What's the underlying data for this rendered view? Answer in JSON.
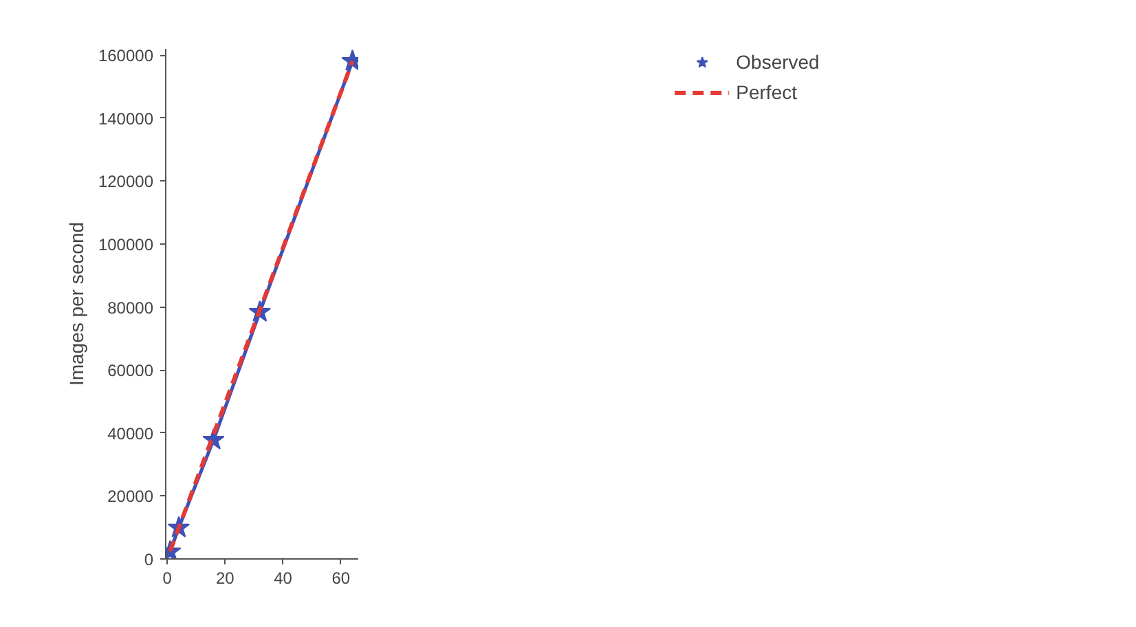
{
  "chart_data": {
    "type": "line",
    "ylabel": "Images per second",
    "xlim": [
      -0.5,
      66
    ],
    "xticks": [
      0,
      20,
      40,
      60
    ],
    "ylim": [
      0,
      162000
    ],
    "yticks": [
      0,
      20000,
      40000,
      60000,
      80000,
      100000,
      120000,
      140000,
      160000
    ],
    "grid": false,
    "legend": "top right",
    "series": [
      {
        "name": "Observed",
        "color": "#3f51b5",
        "x": [
          1,
          4,
          16,
          32,
          64
        ],
        "values": [
          2300,
          9900,
          37800,
          78400,
          158100
        ],
        "marker": "star",
        "line_style": "solid"
      },
      {
        "name": "Perfect",
        "color": "#e53935",
        "x": [
          1,
          64
        ],
        "values": [
          2470,
          158080
        ],
        "marker": "none",
        "line_style": "dashed"
      }
    ]
  }
}
